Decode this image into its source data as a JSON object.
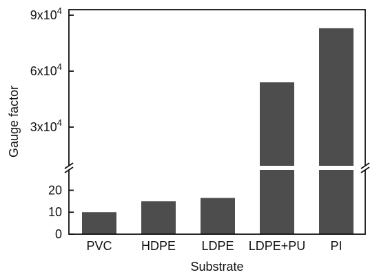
{
  "chart_data": {
    "type": "bar",
    "title": "",
    "xlabel": "Substrate",
    "ylabel": "Gauge factor",
    "categories": [
      "PVC",
      "HDPE",
      "LDPE",
      "LDPE+PU",
      "PI"
    ],
    "values": [
      10,
      15,
      16.5,
      54000,
      83000
    ],
    "bar_color": "#4d4d4d",
    "axis_break": true,
    "lower_ylim": [
      0,
      28
    ],
    "upper_ylim": [
      0,
      90000
    ],
    "lower_ticks": [
      {
        "value": 0,
        "label": "0"
      },
      {
        "value": 10,
        "label": "10"
      },
      {
        "value": 20,
        "label": "20"
      }
    ],
    "upper_ticks": [
      {
        "value": 30000,
        "label": "3x10",
        "exp": "4"
      },
      {
        "value": 60000,
        "label": "6x10",
        "exp": "4"
      },
      {
        "value": 90000,
        "label": "9x10",
        "exp": "4"
      }
    ],
    "grid": false,
    "legend": "none"
  }
}
